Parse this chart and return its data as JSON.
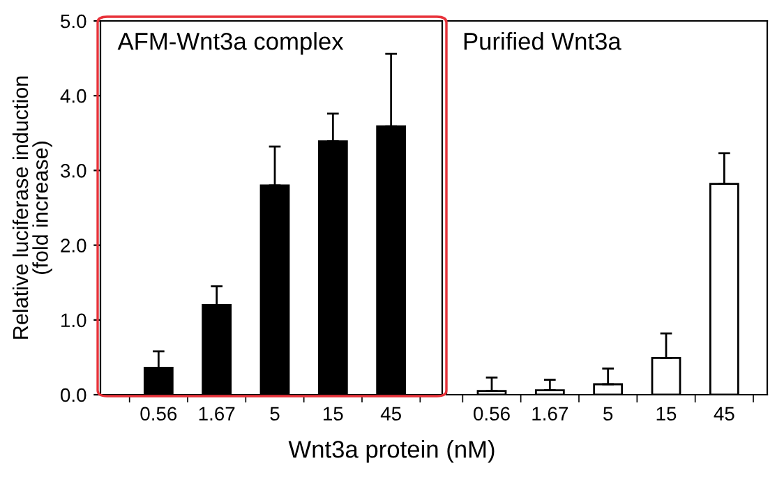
{
  "chart_data": [
    {
      "type": "bar",
      "title": "AFM-Wnt3a complex",
      "ylabel": "Relative luciferase induction\n(fold increase)",
      "categories": [
        "0.56",
        "1.67",
        "5",
        "15",
        "45"
      ],
      "values": [
        0.36,
        1.2,
        2.8,
        3.39,
        3.59
      ],
      "errors": [
        [
          0.36,
          0.58
        ],
        [
          1.2,
          1.45
        ],
        [
          2.8,
          3.32
        ],
        [
          3.39,
          3.76
        ],
        [
          3.59,
          4.56
        ]
      ],
      "color": "#000000",
      "ylim": [
        0,
        5
      ],
      "yticks": [
        {
          "value": 0,
          "label": "0.0"
        },
        {
          "value": 1,
          "label": "1.0"
        },
        {
          "value": 2,
          "label": "2.0"
        },
        {
          "value": 3,
          "label": "3.0"
        },
        {
          "value": 4,
          "label": "4.0"
        },
        {
          "value": 5,
          "label": "5.0"
        }
      ],
      "grid": false
    },
    {
      "type": "bar",
      "title": "Purified Wnt3a",
      "xlabel": "Wnt3a protein (nM)",
      "categories": [
        "0.56",
        "1.67",
        "5",
        "15",
        "45"
      ],
      "values": [
        0.05,
        0.06,
        0.14,
        0.49,
        2.82
      ],
      "errors": [
        [
          0.05,
          0.23
        ],
        [
          0.06,
          0.2
        ],
        [
          0.14,
          0.35
        ],
        [
          0.49,
          0.82
        ],
        [
          2.82,
          3.23
        ]
      ],
      "color": "#ffffff",
      "ylim": [
        0,
        5
      ],
      "tick_labels": "x",
      "grid": false
    }
  ]
}
